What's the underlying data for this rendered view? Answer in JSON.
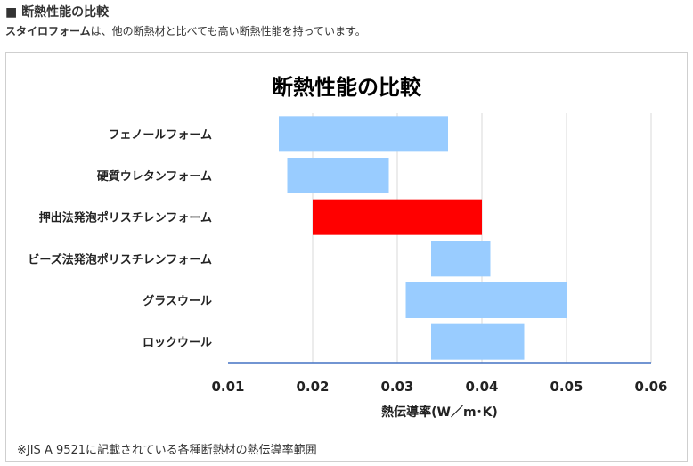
{
  "header": {
    "title_prefix": "■",
    "title": "断熱性能の比較",
    "lead_strong": "スタイロフォーム",
    "lead_rest": "は、他の断熱材と比べても高い断熱性能を持っています。"
  },
  "chart_data": {
    "type": "bar",
    "orientation": "horizontal-range",
    "title": "断熱性能の比較",
    "xlabel": "熱伝導率(W／m･K)",
    "ylabel": "",
    "xlim": [
      0.01,
      0.06
    ],
    "xticks": [
      "0.01",
      "0.02",
      "0.03",
      "0.04",
      "0.05",
      "0.06"
    ],
    "grid": true,
    "categories": [
      "フェノールフォーム",
      "硬質ウレタンフォーム",
      "押出法発泡ポリスチレンフォーム",
      "ビーズ法発泡ポリスチレンフォーム",
      "グラスウール",
      "ロックウール"
    ],
    "ranges": [
      {
        "min": 0.016,
        "max": 0.036
      },
      {
        "min": 0.017,
        "max": 0.029
      },
      {
        "min": 0.02,
        "max": 0.04
      },
      {
        "min": 0.034,
        "max": 0.041
      },
      {
        "min": 0.031,
        "max": 0.05
      },
      {
        "min": 0.034,
        "max": 0.045
      }
    ],
    "highlight_index": 2,
    "colors": {
      "bar": "#99ccff",
      "highlight": "#ff0000",
      "grid": "#d9d9d9",
      "axis": "#4472c4"
    }
  },
  "footnote": "※JIS A 9521に記載されている各種断熱材の熱伝導率範囲"
}
